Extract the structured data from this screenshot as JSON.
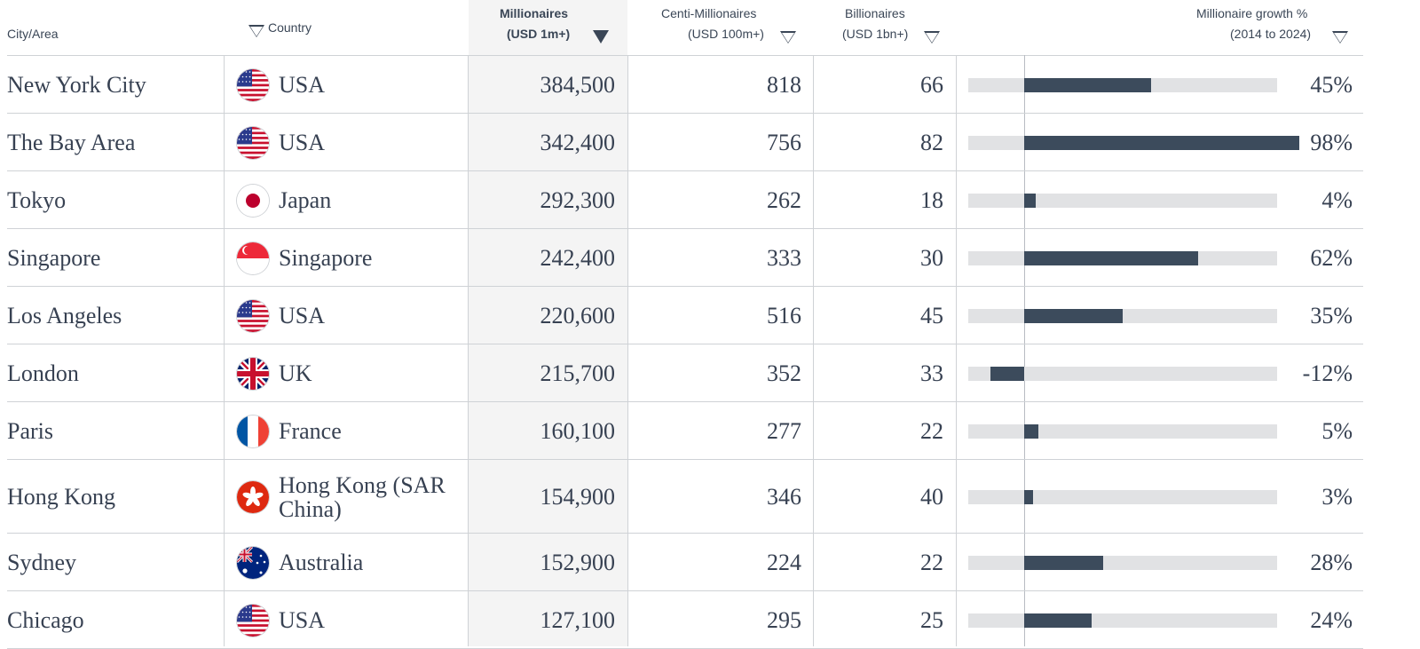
{
  "headers": {
    "city": "City/Area",
    "country": "Country",
    "millionaires_l1": "Millionaires",
    "millionaires_l2": "(USD 1m+)",
    "centi_l1": "Centi-Millionaires",
    "centi_l2": "(USD 100m+)",
    "billionaires_l1": "Billionaires",
    "billionaires_l2": "(USD 1bn+)",
    "growth_l1": "Millionaire growth %",
    "growth_l2": "(2014 to 2024)"
  },
  "colors": {
    "bar": "#3c4b5c",
    "track": "#e1e2e4",
    "sorted_column_bg": "#f4f4f4",
    "text": "#374152"
  },
  "chart_data": {
    "type": "table",
    "sorted_by": "Millionaires (USD 1m+)",
    "sort_direction": "descending",
    "growth_axis_range": [
      -20,
      90
    ],
    "rows": [
      {
        "city": "New York City",
        "country": "USA",
        "flag_icon": "usa-flag-icon",
        "millionaires": "384,500",
        "centi_millionaires": "818",
        "billionaires": "66",
        "growth_label": "45%",
        "growth": 45
      },
      {
        "city": "The Bay Area",
        "country": "USA",
        "flag_icon": "usa-flag-icon",
        "millionaires": "342,400",
        "centi_millionaires": "756",
        "billionaires": "82",
        "growth_label": "98%",
        "growth": 98
      },
      {
        "city": "Tokyo",
        "country": "Japan",
        "flag_icon": "japan-flag-icon",
        "millionaires": "292,300",
        "centi_millionaires": "262",
        "billionaires": "18",
        "growth_label": "4%",
        "growth": 4
      },
      {
        "city": "Singapore",
        "country": "Singapore",
        "flag_icon": "singapore-flag-icon",
        "millionaires": "242,400",
        "centi_millionaires": "333",
        "billionaires": "30",
        "growth_label": "62%",
        "growth": 62
      },
      {
        "city": "Los Angeles",
        "country": "USA",
        "flag_icon": "usa-flag-icon",
        "millionaires": "220,600",
        "centi_millionaires": "516",
        "billionaires": "45",
        "growth_label": "35%",
        "growth": 35
      },
      {
        "city": "London",
        "country": "UK",
        "flag_icon": "uk-flag-icon",
        "millionaires": "215,700",
        "centi_millionaires": "352",
        "billionaires": "33",
        "growth_label": "-12%",
        "growth": -12
      },
      {
        "city": "Paris",
        "country": "France",
        "flag_icon": "france-flag-icon",
        "millionaires": "160,100",
        "centi_millionaires": "277",
        "billionaires": "22",
        "growth_label": "5%",
        "growth": 5
      },
      {
        "city": "Hong Kong",
        "country": "Hong Kong (SAR China)",
        "flag_icon": "hong-kong-flag-icon",
        "millionaires": "154,900",
        "centi_millionaires": "346",
        "billionaires": "40",
        "growth_label": "3%",
        "growth": 3
      },
      {
        "city": "Sydney",
        "country": "Australia",
        "flag_icon": "australia-flag-icon",
        "millionaires": "152,900",
        "centi_millionaires": "224",
        "billionaires": "22",
        "growth_label": "28%",
        "growth": 28
      },
      {
        "city": "Chicago",
        "country": "USA",
        "flag_icon": "usa-flag-icon",
        "millionaires": "127,100",
        "centi_millionaires": "295",
        "billionaires": "25",
        "growth_label": "24%",
        "growth": 24
      }
    ]
  }
}
